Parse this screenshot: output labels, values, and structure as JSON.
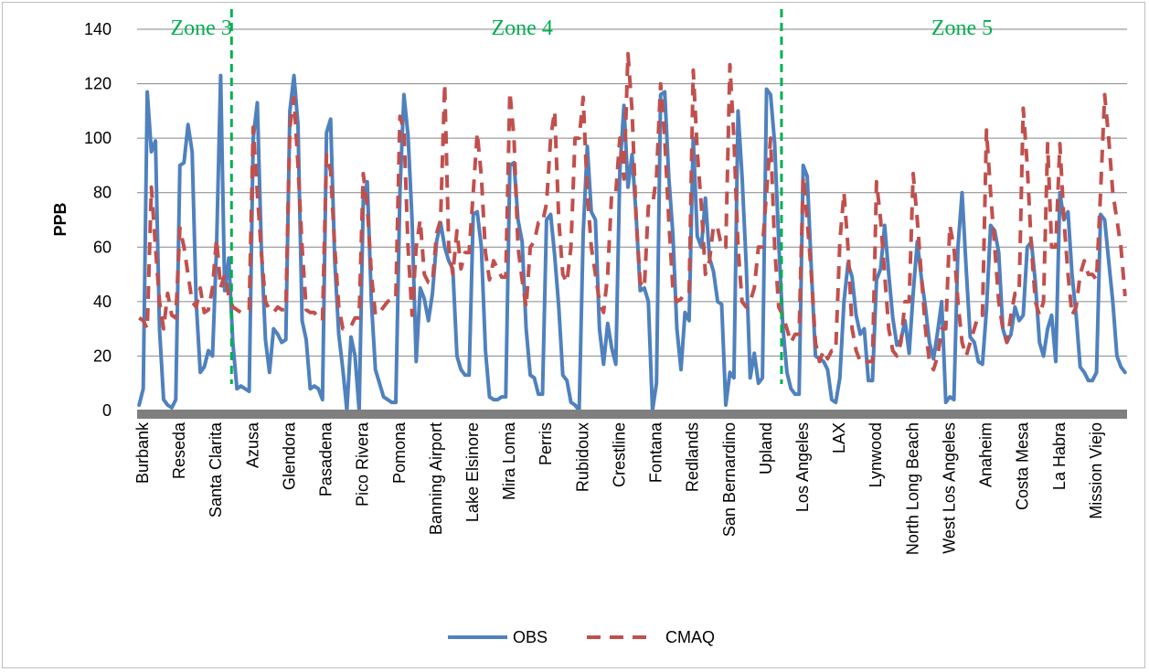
{
  "chart_data": {
    "type": "line",
    "title": "",
    "xlabel": "",
    "ylabel": "PPB",
    "ylim": [
      0,
      140
    ],
    "yticks": [
      0,
      20,
      40,
      60,
      80,
      100,
      120,
      140
    ],
    "grid": true,
    "legend_position": "bottom",
    "categories": [
      "Burbank",
      "Reseda",
      "Santa Clarita",
      "Azusa",
      "Glendora",
      "Pasadena",
      "Pico Rivera",
      "Pomona",
      "Banning Airport",
      "Lake Elsinore",
      "Mira Loma",
      "Perris",
      "Rubidoux",
      "Crestline",
      "Fontana",
      "Redlands",
      "San Bernardino",
      "Upland",
      "Los Angeles",
      "LAX",
      "Lynwood",
      "North Long Beach",
      "West Los Angeles",
      "Anaheim",
      "Costa Mesa",
      "La Habra",
      "Mission Viejo"
    ],
    "zones": [
      {
        "label": "Zone 3",
        "start_index": 0
      },
      {
        "label": "Zone 4",
        "start_index": 3
      },
      {
        "label": "Zone 5",
        "start_index": 18
      }
    ],
    "series": [
      {
        "name": "OBS",
        "color": "#4f81bd",
        "style": "solid",
        "values": [
          [
            2,
            8,
            117,
            95,
            99,
            30,
            4,
            2,
            1
          ],
          [
            4,
            90,
            91,
            105,
            95,
            40,
            14,
            16,
            22
          ],
          [
            20,
            60,
            123,
            44,
            56,
            25,
            8,
            9,
            8
          ],
          [
            7,
            100,
            113,
            60,
            26,
            14,
            30,
            28,
            25
          ],
          [
            26,
            110,
            123,
            105,
            33,
            26,
            8,
            9,
            8
          ],
          [
            4,
            102,
            107,
            55,
            28,
            15,
            0,
            27,
            20
          ],
          [
            0,
            77,
            84,
            40,
            15,
            10,
            5,
            4,
            3
          ],
          [
            3,
            80,
            116,
            101,
            70,
            18,
            45,
            41,
            33
          ],
          [
            43,
            62,
            69,
            60,
            55,
            52,
            20,
            15,
            13
          ],
          [
            13,
            72,
            73,
            60,
            22,
            5,
            4,
            4,
            5
          ],
          [
            5,
            90,
            91,
            70,
            62,
            30,
            13,
            12,
            6
          ],
          [
            6,
            70,
            72,
            57,
            38,
            13,
            11,
            3,
            2
          ],
          [
            0,
            65,
            97,
            73,
            70,
            30,
            17,
            32,
            23
          ],
          [
            17,
            88,
            112,
            82,
            94,
            71,
            44,
            45,
            40
          ],
          [
            0,
            10,
            116,
            117,
            86,
            65,
            30,
            15,
            36
          ],
          [
            33,
            100,
            64,
            60,
            78,
            56,
            51,
            40,
            39
          ],
          [
            2,
            14,
            12,
            110,
            86,
            54,
            12,
            21,
            10
          ],
          [
            12,
            118,
            116,
            98,
            62,
            31,
            14,
            8,
            6
          ],
          [
            6,
            90,
            86,
            52,
            20,
            19,
            18,
            15,
            4
          ],
          [
            3,
            12,
            40,
            54,
            49,
            35,
            28,
            30,
            11
          ],
          [
            11,
            48,
            52,
            68,
            50,
            34,
            24,
            26,
            33
          ],
          [
            21,
            43,
            62,
            49,
            38,
            25,
            19,
            29,
            40
          ],
          [
            3,
            5,
            4,
            60,
            80,
            52,
            27,
            25,
            18
          ],
          [
            17,
            37,
            68,
            66,
            58,
            30,
            25,
            28,
            38
          ],
          [
            33,
            35,
            60,
            62,
            47,
            25,
            20,
            30,
            35
          ],
          [
            18,
            80,
            70,
            73,
            50,
            35,
            16,
            14,
            11
          ],
          [
            11,
            14,
            72,
            70,
            55,
            40,
            20,
            16,
            14
          ]
        ]
      },
      {
        "name": "CMAQ",
        "color": "#c0504d",
        "style": "dashed",
        "values": [
          [
            34,
            33,
            30,
            82,
            60,
            40,
            30,
            43,
            35
          ],
          [
            34,
            67,
            60,
            50,
            40,
            38,
            45,
            36,
            37
          ],
          [
            45,
            63,
            45,
            50,
            42,
            38,
            37,
            36,
            37
          ],
          [
            37,
            104,
            80,
            58,
            40,
            37,
            36,
            38,
            37
          ],
          [
            37,
            104,
            115,
            90,
            60,
            37,
            36,
            36,
            34
          ],
          [
            33,
            94,
            88,
            60,
            38,
            30,
            30,
            31,
            34
          ],
          [
            34,
            87,
            75,
            50,
            35,
            36,
            38,
            40,
            41
          ],
          [
            41,
            108,
            103,
            60,
            35,
            60,
            70,
            50,
            47
          ],
          [
            47,
            65,
            70,
            120,
            60,
            50,
            66,
            52,
            58
          ],
          [
            58,
            80,
            102,
            86,
            58,
            48,
            55,
            52,
            49
          ],
          [
            49,
            117,
            100,
            60,
            48,
            38,
            60,
            62,
            69
          ],
          [
            69,
            76,
            100,
            110,
            70,
            50,
            47,
            60,
            100
          ],
          [
            100,
            115,
            80,
            60,
            50,
            40,
            36,
            50,
            80
          ],
          [
            80,
            100,
            85,
            131,
            110,
            70,
            47,
            45,
            75
          ],
          [
            75,
            86,
            120,
            100,
            70,
            45,
            40,
            41,
            43
          ],
          [
            43,
            125,
            95,
            75,
            50,
            55,
            68,
            67,
            60
          ],
          [
            60,
            127,
            100,
            60,
            40,
            38,
            40,
            45,
            60
          ],
          [
            60,
            80,
            100,
            60,
            38,
            35,
            30,
            25,
            28
          ],
          [
            28,
            86,
            70,
            50,
            25,
            18,
            22,
            19,
            22
          ],
          [
            22,
            62,
            80,
            60,
            30,
            22,
            18,
            17,
            18
          ],
          [
            18,
            84,
            70,
            50,
            30,
            22,
            20,
            25,
            40
          ],
          [
            40,
            87,
            70,
            50,
            30,
            18,
            15,
            20,
            30
          ],
          [
            30,
            68,
            60,
            40,
            25,
            20,
            25,
            30,
            35
          ],
          [
            35,
            103,
            80,
            60,
            40,
            30,
            25,
            35,
            43
          ],
          [
            43,
            111,
            90,
            60,
            40,
            35,
            40,
            98,
            60
          ],
          [
            60,
            98,
            70,
            50,
            35,
            38,
            50,
            55,
            50
          ],
          [
            50,
            48,
            80,
            116,
            100,
            80,
            70,
            60,
            42
          ]
        ]
      }
    ]
  }
}
